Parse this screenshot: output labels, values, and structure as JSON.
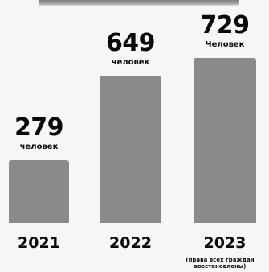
{
  "chart_data": {
    "type": "bar",
    "categories": [
      "2021",
      "2022",
      "2023"
    ],
    "values": [
      279,
      649,
      729
    ],
    "value_labels": [
      "279",
      "649",
      "729"
    ],
    "unit_labels": [
      "человек",
      "человек",
      "Человек"
    ],
    "category_notes": [
      "",
      "",
      "(права всех граждан восстановлены)"
    ],
    "bar_color": "#8a8a8a",
    "background_color": "#f6f6f6",
    "text_color": "#0b0b0b",
    "title": "",
    "xlabel": "",
    "ylabel": "",
    "ylim": [
      0,
      729
    ],
    "grid": false
  }
}
